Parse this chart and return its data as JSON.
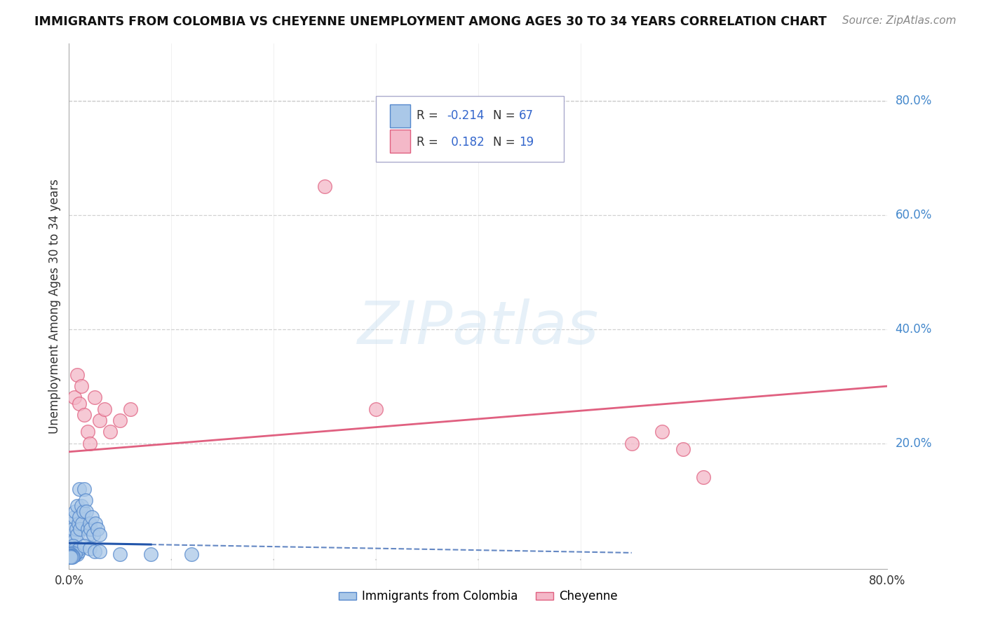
{
  "title": "IMMIGRANTS FROM COLOMBIA VS CHEYENNE UNEMPLOYMENT AMONG AGES 30 TO 34 YEARS CORRELATION CHART",
  "source": "Source: ZipAtlas.com",
  "ylabel": "Unemployment Among Ages 30 to 34 years",
  "xlim": [
    0.0,
    0.8
  ],
  "ylim": [
    -0.02,
    0.9
  ],
  "plot_ylim": [
    0.0,
    0.9
  ],
  "ytick_vals": [
    0.2,
    0.4,
    0.6,
    0.8
  ],
  "ytick_labels": [
    "20.0%",
    "40.0%",
    "60.0%",
    "80.0%"
  ],
  "xtick_vals": [
    0.0,
    0.8
  ],
  "xtick_labels": [
    "0.0%",
    "80.0%"
  ],
  "background_color": "#ffffff",
  "grid_color": "#cccccc",
  "series1_color": "#aac8e8",
  "series1_edge": "#5588cc",
  "series2_color": "#f4b8c8",
  "series2_edge": "#e06080",
  "line1_color": "#2255aa",
  "line2_color": "#e06080",
  "scatter1_x": [
    0.001,
    0.002,
    0.003,
    0.003,
    0.004,
    0.005,
    0.005,
    0.006,
    0.007,
    0.008,
    0.008,
    0.009,
    0.01,
    0.01,
    0.011,
    0.012,
    0.013,
    0.014,
    0.015,
    0.016,
    0.017,
    0.018,
    0.019,
    0.02,
    0.021,
    0.022,
    0.024,
    0.026,
    0.028,
    0.03,
    0.001,
    0.002,
    0.003,
    0.004,
    0.005,
    0.006,
    0.007,
    0.008,
    0.009,
    0.01,
    0.002,
    0.003,
    0.004,
    0.005,
    0.006,
    0.001,
    0.002,
    0.001,
    0.003,
    0.002,
    0.001,
    0.001,
    0.002,
    0.003,
    0.004,
    0.001,
    0.002,
    0.003,
    0.001,
    0.002,
    0.015,
    0.02,
    0.025,
    0.03,
    0.05,
    0.08,
    0.12
  ],
  "scatter1_y": [
    0.03,
    0.02,
    0.04,
    0.06,
    0.05,
    0.03,
    0.07,
    0.08,
    0.05,
    0.04,
    0.09,
    0.06,
    0.07,
    0.12,
    0.05,
    0.09,
    0.06,
    0.08,
    0.12,
    0.1,
    0.08,
    0.05,
    0.04,
    0.06,
    0.05,
    0.07,
    0.04,
    0.06,
    0.05,
    0.04,
    0.01,
    0.015,
    0.01,
    0.02,
    0.01,
    0.015,
    0.01,
    0.005,
    0.01,
    0.015,
    0.005,
    0.008,
    0.006,
    0.004,
    0.007,
    0.003,
    0.005,
    0.004,
    0.003,
    0.006,
    0.002,
    0.003,
    0.002,
    0.003,
    0.002,
    0.001,
    0.002,
    0.001,
    0.002,
    0.001,
    0.02,
    0.015,
    0.01,
    0.01,
    0.005,
    0.005,
    0.005
  ],
  "scatter2_x": [
    0.005,
    0.008,
    0.01,
    0.012,
    0.015,
    0.018,
    0.02,
    0.025,
    0.03,
    0.035,
    0.04,
    0.05,
    0.06,
    0.25,
    0.6,
    0.62,
    0.55,
    0.58,
    0.3
  ],
  "scatter2_y": [
    0.28,
    0.32,
    0.27,
    0.3,
    0.25,
    0.22,
    0.2,
    0.28,
    0.24,
    0.26,
    0.22,
    0.24,
    0.26,
    0.65,
    0.19,
    0.14,
    0.2,
    0.22,
    0.26
  ],
  "line1_x": [
    0.0,
    0.55
  ],
  "line1_y": [
    0.025,
    0.008
  ],
  "line2_x": [
    0.0,
    0.8
  ],
  "line2_y": [
    0.185,
    0.3
  ],
  "legend1_label": "Immigrants from Colombia",
  "legend2_label": "Cheyenne",
  "legend_r1": "-0.214",
  "legend_n1": "67",
  "legend_r2": "0.182",
  "legend_n2": "19"
}
